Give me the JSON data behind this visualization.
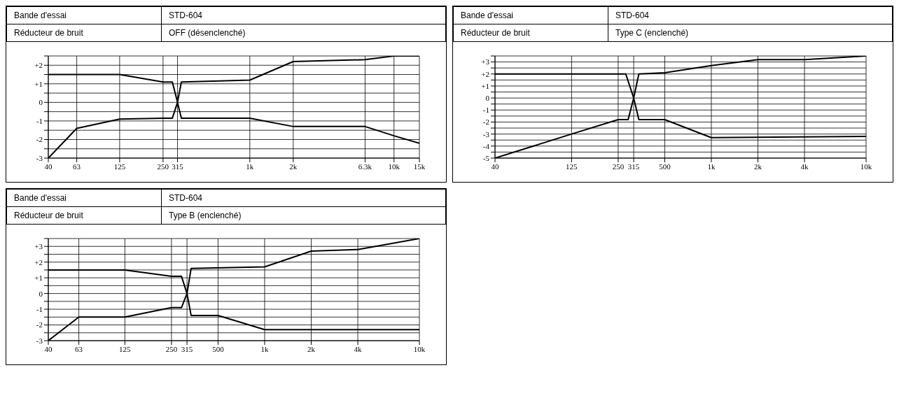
{
  "chart_data": [
    {
      "type": "line",
      "annotations": [
        "Bande d'essai",
        "STD-604",
        "Réducteur de bruit",
        "OFF (désenclenché)"
      ],
      "log": "x",
      "grid": true,
      "marker": "none",
      "line_style": "solid",
      "xlim": [
        40,
        15000
      ],
      "xticks": [
        40,
        63,
        125,
        250,
        315,
        {
          "value": 1000,
          "label": "1k"
        },
        {
          "value": 2000,
          "label": "2k"
        },
        {
          "value": 6300,
          "label": "6.3k"
        },
        {
          "value": 10000,
          "label": "10k"
        },
        {
          "value": 15000,
          "label": "15k"
        }
      ],
      "ylim": [
        -3,
        2.5
      ],
      "yticks": [
        -3,
        {
          "value": -2.5,
          "label": null
        },
        -2,
        {
          "value": -1.5,
          "label": null
        },
        -1,
        {
          "value": -0.5,
          "label": null
        },
        0,
        {
          "value": 0.5,
          "label": null
        },
        {
          "value": 1,
          "label": "+1"
        },
        {
          "value": 1.5,
          "label": null
        },
        {
          "value": 2,
          "label": "+2"
        },
        {
          "value": 2.5,
          "label": null
        }
      ],
      "series": [
        {
          "color": "#000000",
          "x": [
            40,
            125,
            250,
            290,
            315,
            335,
            1000,
            2000,
            6300,
            10000,
            15000
          ],
          "values": [
            1.5,
            1.5,
            1.1,
            1.1,
            0,
            1.1,
            1.2,
            2.2,
            2.3,
            2.5,
            2.5
          ]
        },
        {
          "color": "#000000",
          "x": [
            40,
            63,
            125,
            250,
            290,
            315,
            335,
            1000,
            2000,
            6300,
            10000,
            15000
          ],
          "values": [
            -3,
            -1.4,
            -0.9,
            -0.85,
            -0.85,
            0,
            -0.85,
            -0.85,
            -1.3,
            -1.3,
            -1.8,
            -2.2
          ]
        }
      ]
    },
    {
      "type": "line",
      "annotations": [
        "Bande d'essai",
        "STD-604",
        "Réducteur de bruit",
        "Type C (enclenché)"
      ],
      "log": "x",
      "grid": true,
      "marker": "none",
      "line_style": "solid",
      "xlim": [
        40,
        10000
      ],
      "xticks": [
        40,
        125,
        250,
        315,
        500,
        {
          "value": 1000,
          "label": "1k"
        },
        {
          "value": 2000,
          "label": "2k"
        },
        {
          "value": 4000,
          "label": "4k"
        },
        {
          "value": 10000,
          "label": "10k"
        }
      ],
      "ylim": [
        -5,
        3.5
      ],
      "yticks": [
        -5,
        {
          "value": -4.5,
          "label": null
        },
        -4,
        {
          "value": -3.5,
          "label": null
        },
        -3,
        {
          "value": -2.5,
          "label": null
        },
        -2,
        {
          "value": -1.5,
          "label": null
        },
        -1,
        {
          "value": -0.5,
          "label": null
        },
        0,
        {
          "value": 0.5,
          "label": null
        },
        {
          "value": 1,
          "label": "+1"
        },
        {
          "value": 1.5,
          "label": null
        },
        {
          "value": 2,
          "label": "+2"
        },
        {
          "value": 2.5,
          "label": null
        },
        {
          "value": 3,
          "label": "+3"
        },
        {
          "value": 3.5,
          "label": null
        }
      ],
      "series": [
        {
          "color": "#000000",
          "x": [
            40,
            280,
            315,
            340,
            500,
            1000,
            2000,
            4000,
            10000
          ],
          "values": [
            2,
            2,
            0,
            2,
            2.1,
            2.7,
            3.2,
            3.2,
            3.5
          ]
        },
        {
          "color": "#000000",
          "x": [
            40,
            125,
            250,
            290,
            315,
            340,
            500,
            1000,
            10000
          ],
          "values": [
            -5,
            -3,
            -1.8,
            -1.8,
            0,
            -1.8,
            -1.8,
            -3.3,
            -3.2
          ]
        }
      ]
    },
    {
      "type": "line",
      "annotations": [
        "Bande d'essai",
        "STD-604",
        "Réducteur de bruit",
        "Type B (enclenché)"
      ],
      "log": "x",
      "grid": true,
      "marker": "none",
      "line_style": "solid",
      "xlim": [
        40,
        10000
      ],
      "xticks": [
        40,
        63,
        125,
        250,
        315,
        500,
        {
          "value": 1000,
          "label": "1k"
        },
        {
          "value": 2000,
          "label": "2k"
        },
        {
          "value": 4000,
          "label": "4k"
        },
        {
          "value": 10000,
          "label": "10k"
        }
      ],
      "ylim": [
        -3,
        3.5
      ],
      "yticks": [
        -3,
        {
          "value": -2.5,
          "label": null
        },
        -2,
        {
          "value": -1.5,
          "label": null
        },
        -1,
        {
          "value": -0.5,
          "label": null
        },
        0,
        {
          "value": 0.5,
          "label": null
        },
        {
          "value": 1,
          "label": "+1"
        },
        {
          "value": 1.5,
          "label": null
        },
        {
          "value": 2,
          "label": "+2"
        },
        {
          "value": 2.5,
          "label": null
        },
        {
          "value": 3,
          "label": "+3"
        },
        {
          "value": 3.5,
          "label": null
        }
      ],
      "series": [
        {
          "color": "#000000",
          "x": [
            40,
            125,
            250,
            290,
            315,
            335,
            1000,
            2000,
            4000,
            10000
          ],
          "values": [
            1.5,
            1.5,
            1.1,
            1.1,
            0,
            1.6,
            1.7,
            2.7,
            2.8,
            3.5
          ]
        },
        {
          "color": "#000000",
          "x": [
            40,
            63,
            125,
            250,
            290,
            315,
            335,
            500,
            1000,
            10000
          ],
          "values": [
            -3,
            -1.5,
            -1.5,
            -0.9,
            -0.9,
            0,
            -1.4,
            -1.4,
            -2.3,
            -2.3
          ]
        }
      ]
    }
  ]
}
